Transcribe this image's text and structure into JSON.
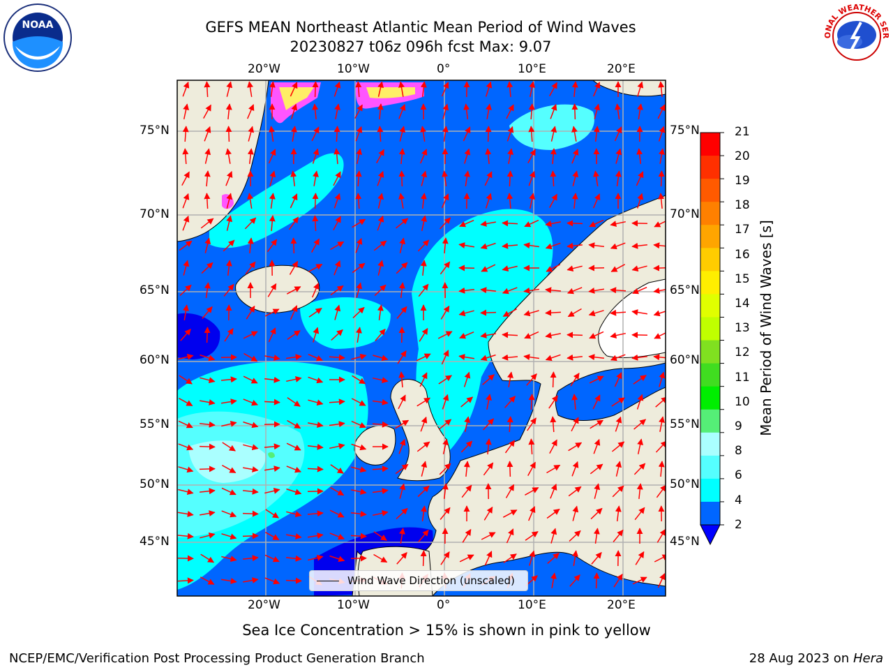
{
  "title_line1": "GEFS MEAN Northeast Atlantic Mean Period of Wind Waves",
  "title_line2": "20230827 t06z 096h fcst   Max: 9.07",
  "lon_ticks": [
    "20°W",
    "10°W",
    "0°",
    "10°E",
    "20°E"
  ],
  "lat_ticks": [
    "75°N",
    "70°N",
    "65°N",
    "60°N",
    "55°N",
    "50°N",
    "45°N"
  ],
  "legend_label": "Wind Wave Direction (unscaled)",
  "colorbar": {
    "title": "Mean Period of Wind Waves [s]",
    "labels": [
      "21",
      "20",
      "19",
      "18",
      "17",
      "16",
      "15",
      "14",
      "13",
      "12",
      "11",
      "10",
      "9",
      "8",
      "6",
      "4",
      "2"
    ],
    "colors": [
      "#ff0000",
      "#ff3000",
      "#ff5a00",
      "#ff8000",
      "#ffa500",
      "#ffcc00",
      "#ffee00",
      "#e0ff00",
      "#c0ff00",
      "#80e020",
      "#40dd20",
      "#00ee00",
      "#55ee77",
      "#aaffff",
      "#55ffff",
      "#00ffff",
      "#0066ff"
    ],
    "under_color": "#0000ff"
  },
  "colors": {
    "land": "#eeecdc",
    "sea_low": "#0066ff",
    "sea_deep": "#0000ee",
    "sea_mid": "#00ffff",
    "sea_light": "#55ffff",
    "sea_pale": "#aaffff",
    "arrow": "#ff0000",
    "ice_pink": "#ff55ff",
    "ice_yellow": "#ffee66"
  },
  "footer_note": "Sea Ice Concentration > 15% is shown in pink to yellow",
  "credit": "NCEP/EMC/Verification Post Processing Product Generation Branch",
  "date_prefix": "28 Aug 2023 on",
  "date_host": "Hera",
  "logos": {
    "left": "NOAA",
    "right_arc": "NATIONAL WEATHER SERVICE"
  }
}
